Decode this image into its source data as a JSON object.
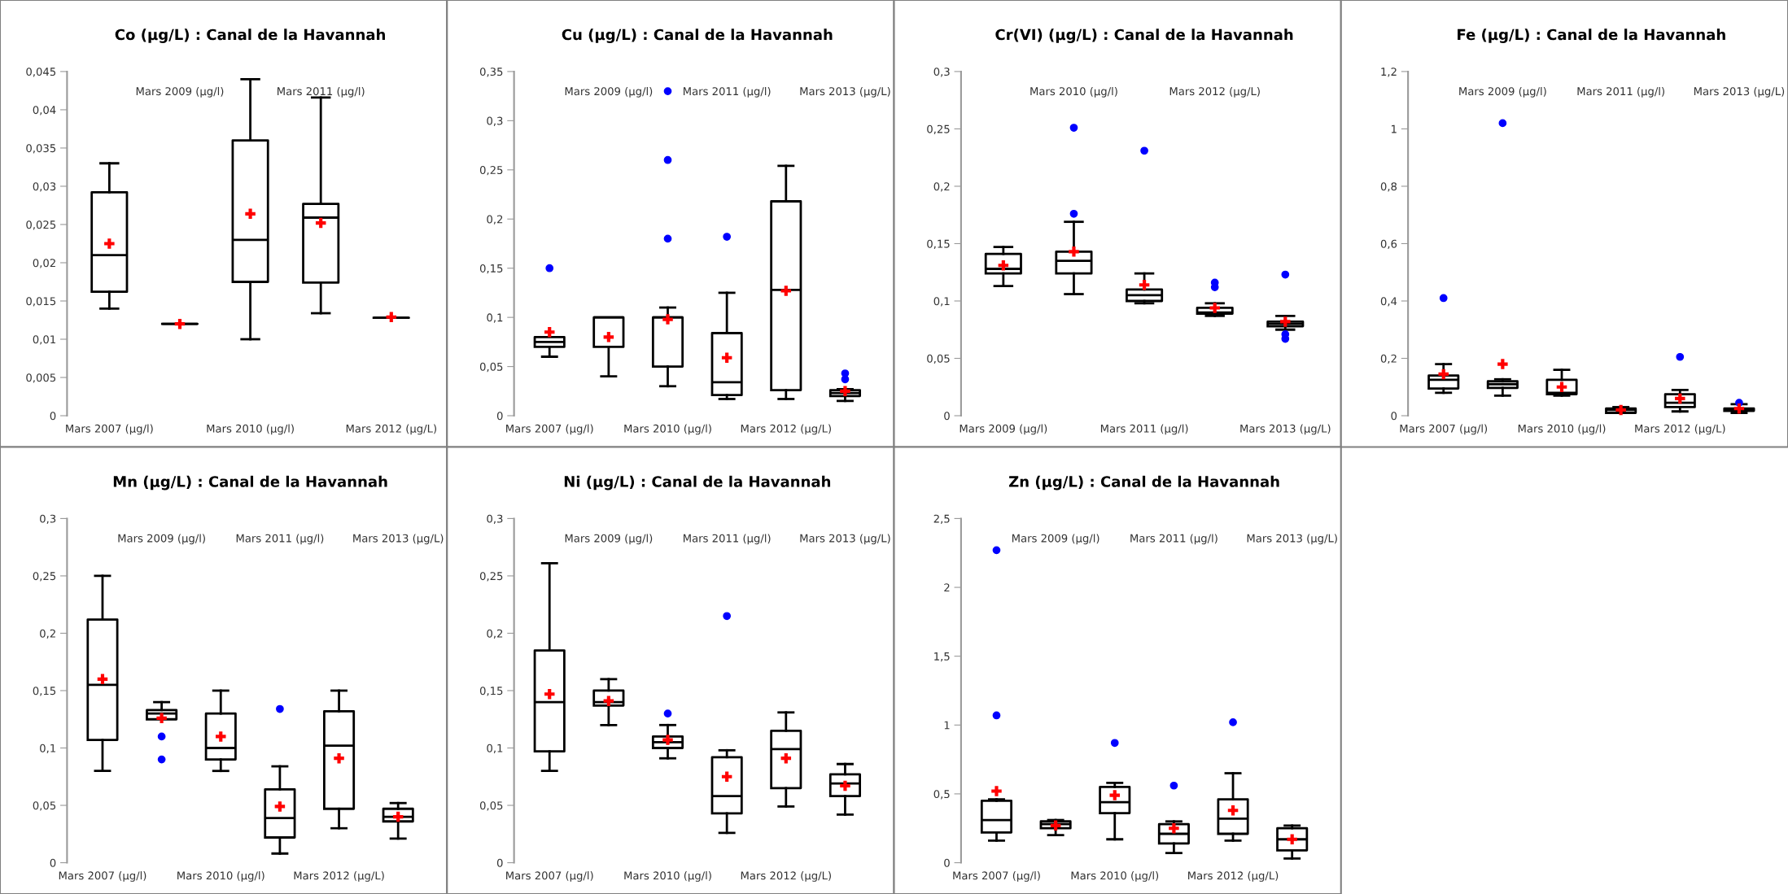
{
  "chart_data": [
    {
      "type": "box",
      "title": "Co (µg/L) : Canal de la Havannah",
      "categories": [
        "Mars 2007 (µg/l)",
        "Mars 2009 (µg/l)",
        "Mars 2010 (µg/l)",
        "Mars 2011 (µg/l)",
        "Mars 2012 (µg/L)"
      ],
      "boxes": [
        {
          "low": 0.014,
          "q1": 0.0162,
          "median": 0.021,
          "q3": 0.0292,
          "high": 0.033,
          "mean": 0.0225
        },
        {
          "low": 0.012,
          "q1": 0.012,
          "median": 0.012,
          "q3": 0.012,
          "high": 0.012,
          "mean": 0.012
        },
        {
          "low": 0.01,
          "q1": 0.0175,
          "median": 0.023,
          "q3": 0.036,
          "high": 0.044,
          "mean": 0.0264
        },
        {
          "low": 0.0134,
          "q1": 0.0174,
          "median": 0.0259,
          "q3": 0.0277,
          "high": 0.0416,
          "mean": 0.0252
        },
        {
          "low": 0.0128,
          "q1": 0.0128,
          "median": 0.0128,
          "q3": 0.0128,
          "high": 0.0128,
          "mean": 0.0129
        }
      ],
      "ylim": [
        0,
        0.045
      ],
      "yticks": [
        0,
        {
          "value": 0.005,
          "label": "0,005"
        },
        {
          "value": 0.01,
          "label": "0,01"
        },
        {
          "value": 0.015,
          "label": "0,015"
        },
        {
          "value": 0.02,
          "label": "0,02"
        },
        {
          "value": 0.025,
          "label": "0,025"
        },
        {
          "value": 0.03,
          "label": "0,03"
        },
        {
          "value": 0.035,
          "label": "0,035"
        },
        {
          "value": 0.04,
          "label": "0,04"
        },
        {
          "value": 0.045,
          "label": "0,045"
        }
      ]
    },
    {
      "type": "box",
      "title": "Cu (µg/L) : Canal de la Havannah",
      "categories": [
        "Mars 2007 (µg/l)",
        "Mars 2009 (µg/l)",
        "Mars 2010 (µg/l)",
        "Mars 2011 (µg/l)",
        "Mars 2012 (µg/L)",
        "Mars 2013 (µg/L)"
      ],
      "boxes": [
        {
          "low": 0.06,
          "q1": 0.07,
          "median": 0.075,
          "q3": 0.08,
          "high": 0.08,
          "mean": 0.085,
          "outliers": [
            0.15
          ]
        },
        {
          "low": 0.04,
          "q1": 0.07,
          "median": 0.1,
          "q3": 0.1,
          "high": 0.1,
          "mean": 0.08
        },
        {
          "low": 0.03,
          "q1": 0.05,
          "median": 0.1,
          "q3": 0.1,
          "high": 0.11,
          "mean": 0.098,
          "outliers": [
            0.18,
            0.26,
            0.33
          ]
        },
        {
          "low": 0.017,
          "q1": 0.021,
          "median": 0.034,
          "q3": 0.084,
          "high": 0.125,
          "mean": 0.059,
          "outliers": [
            0.182
          ]
        },
        {
          "low": 0.017,
          "q1": 0.026,
          "median": 0.128,
          "q3": 0.218,
          "high": 0.254,
          "mean": 0.127
        },
        {
          "low": 0.015,
          "q1": 0.02,
          "median": 0.023,
          "q3": 0.026,
          "high": 0.027,
          "mean": 0.025,
          "outliers": [
            0.037,
            0.043
          ]
        }
      ],
      "ylim": [
        0,
        0.35
      ],
      "yticks": [
        0,
        {
          "value": 0.05,
          "label": "0,05"
        },
        {
          "value": 0.1,
          "label": "0,1"
        },
        {
          "value": 0.15,
          "label": "0,15"
        },
        {
          "value": 0.2,
          "label": "0,2"
        },
        {
          "value": 0.25,
          "label": "0,25"
        },
        {
          "value": 0.3,
          "label": "0,3"
        },
        {
          "value": 0.35,
          "label": "0,35"
        }
      ]
    },
    {
      "type": "box",
      "title": "Cr(VI) (µg/L) : Canal de la Havannah",
      "categories": [
        "Mars 2009 (µg/l)",
        "Mars 2010 (µg/l)",
        "Mars 2011 (µg/l)",
        "Mars 2012 (µg/L)",
        "Mars 2013 (µg/L)"
      ],
      "boxes": [
        {
          "low": 0.113,
          "q1": 0.124,
          "median": 0.128,
          "q3": 0.141,
          "high": 0.147,
          "mean": 0.131
        },
        {
          "low": 0.106,
          "q1": 0.124,
          "median": 0.135,
          "q3": 0.143,
          "high": 0.169,
          "mean": 0.143,
          "outliers": [
            0.176,
            0.251
          ]
        },
        {
          "low": 0.098,
          "q1": 0.1,
          "median": 0.105,
          "q3": 0.11,
          "high": 0.124,
          "mean": 0.114,
          "outliers": [
            0.231
          ]
        },
        {
          "low": 0.087,
          "q1": 0.089,
          "median": 0.09,
          "q3": 0.094,
          "high": 0.098,
          "mean": 0.094,
          "outliers": [
            0.112,
            0.116
          ]
        },
        {
          "low": 0.075,
          "q1": 0.078,
          "median": 0.08,
          "q3": 0.082,
          "high": 0.087,
          "mean": 0.082,
          "outliers": [
            0.067,
            0.071,
            0.123
          ]
        }
      ],
      "ylim": [
        0,
        0.3
      ],
      "yticks": [
        0,
        {
          "value": 0.05,
          "label": "0,05"
        },
        {
          "value": 0.1,
          "label": "0,1"
        },
        {
          "value": 0.15,
          "label": "0,15"
        },
        {
          "value": 0.2,
          "label": "0,2"
        },
        {
          "value": 0.25,
          "label": "0,25"
        },
        {
          "value": 0.3,
          "label": "0,3"
        }
      ]
    },
    {
      "type": "box",
      "title": "Fe (µg/L) : Canal de la Havannah",
      "categories": [
        "Mars 2007 (µg/l)",
        "Mars 2009 (µg/l)",
        "Mars 2010 (µg/l)",
        "Mars 2011 (µg/l)",
        "Mars 2012 (µg/L)",
        "Mars 2013 (µg/L)"
      ],
      "boxes": [
        {
          "low": 0.08,
          "q1": 0.095,
          "median": 0.125,
          "q3": 0.14,
          "high": 0.18,
          "mean": 0.145,
          "outliers": [
            0.41
          ]
        },
        {
          "low": 0.07,
          "q1": 0.097,
          "median": 0.11,
          "q3": 0.12,
          "high": 0.127,
          "mean": 0.18,
          "outliers": [
            1.02
          ]
        },
        {
          "low": 0.07,
          "q1": 0.075,
          "median": 0.08,
          "q3": 0.125,
          "high": 0.16,
          "mean": 0.1
        },
        {
          "low": 0.01,
          "q1": 0.01,
          "median": 0.02,
          "q3": 0.025,
          "high": 0.03,
          "mean": 0.02
        },
        {
          "low": 0.015,
          "q1": 0.03,
          "median": 0.045,
          "q3": 0.075,
          "high": 0.09,
          "mean": 0.06,
          "outliers": [
            0.205
          ]
        },
        {
          "low": 0.01,
          "q1": 0.017,
          "median": 0.02,
          "q3": 0.025,
          "high": 0.04,
          "mean": 0.025,
          "outliers": [
            0.045
          ]
        }
      ],
      "ylim": [
        0,
        1.2
      ],
      "yticks": [
        0,
        {
          "value": 0.2,
          "label": "0,2"
        },
        {
          "value": 0.4,
          "label": "0,4"
        },
        {
          "value": 0.6,
          "label": "0,6"
        },
        {
          "value": 0.8,
          "label": "0,8"
        },
        1,
        {
          "value": 1.2,
          "label": "1,2"
        }
      ]
    },
    {
      "type": "box",
      "title": "Mn (µg/L) : Canal de la Havannah",
      "categories": [
        "Mars 2007 (µg/l)",
        "Mars 2009 (µg/l)",
        "Mars 2010 (µg/l)",
        "Mars 2011 (µg/l)",
        "Mars 2012 (µg/L)",
        "Mars 2013 (µg/L)"
      ],
      "boxes": [
        {
          "low": 0.08,
          "q1": 0.107,
          "median": 0.155,
          "q3": 0.212,
          "high": 0.25,
          "mean": 0.16
        },
        {
          "low": 0.125,
          "q1": 0.125,
          "median": 0.13,
          "q3": 0.133,
          "high": 0.14,
          "mean": 0.126,
          "outliers": [
            0.11,
            0.09
          ]
        },
        {
          "low": 0.08,
          "q1": 0.09,
          "median": 0.1,
          "q3": 0.13,
          "high": 0.15,
          "mean": 0.11
        },
        {
          "low": 0.008,
          "q1": 0.022,
          "median": 0.039,
          "q3": 0.064,
          "high": 0.084,
          "mean": 0.049,
          "outliers": [
            0.134
          ]
        },
        {
          "low": 0.03,
          "q1": 0.047,
          "median": 0.102,
          "q3": 0.132,
          "high": 0.15,
          "mean": 0.091
        },
        {
          "low": 0.021,
          "q1": 0.036,
          "median": 0.04,
          "q3": 0.047,
          "high": 0.052,
          "mean": 0.04
        }
      ],
      "ylim": [
        0,
        0.3
      ],
      "yticks": [
        0,
        {
          "value": 0.05,
          "label": "0,05"
        },
        {
          "value": 0.1,
          "label": "0,1"
        },
        {
          "value": 0.15,
          "label": "0,15"
        },
        {
          "value": 0.2,
          "label": "0,2"
        },
        {
          "value": 0.25,
          "label": "0,25"
        },
        {
          "value": 0.3,
          "label": "0,3"
        }
      ]
    },
    {
      "type": "box",
      "title": "Ni (µg/L) : Canal de la Havannah",
      "categories": [
        "Mars 2007 (µg/l)",
        "Mars 2009 (µg/l)",
        "Mars 2010 (µg/l)",
        "Mars 2011 (µg/l)",
        "Mars 2012 (µg/L)",
        "Mars 2013 (µg/L)"
      ],
      "boxes": [
        {
          "low": 0.08,
          "q1": 0.097,
          "median": 0.14,
          "q3": 0.185,
          "high": 0.261,
          "mean": 0.147
        },
        {
          "low": 0.12,
          "q1": 0.137,
          "median": 0.14,
          "q3": 0.15,
          "high": 0.16,
          "mean": 0.141
        },
        {
          "low": 0.091,
          "q1": 0.1,
          "median": 0.105,
          "q3": 0.11,
          "high": 0.12,
          "mean": 0.107,
          "outliers": [
            0.13
          ]
        },
        {
          "low": 0.026,
          "q1": 0.043,
          "median": 0.058,
          "q3": 0.092,
          "high": 0.098,
          "mean": 0.075,
          "outliers": [
            0.215
          ]
        },
        {
          "low": 0.049,
          "q1": 0.065,
          "median": 0.099,
          "q3": 0.115,
          "high": 0.131,
          "mean": 0.091
        },
        {
          "low": 0.042,
          "q1": 0.058,
          "median": 0.069,
          "q3": 0.077,
          "high": 0.086,
          "mean": 0.067
        }
      ],
      "ylim": [
        0,
        0.3
      ],
      "yticks": [
        0,
        {
          "value": 0.05,
          "label": "0,05"
        },
        {
          "value": 0.1,
          "label": "0,1"
        },
        {
          "value": 0.15,
          "label": "0,15"
        },
        {
          "value": 0.2,
          "label": "0,2"
        },
        {
          "value": 0.25,
          "label": "0,25"
        },
        {
          "value": 0.3,
          "label": "0,3"
        }
      ]
    },
    {
      "type": "box",
      "title": "Zn (µg/L) : Canal de la Havannah",
      "categories": [
        "Mars 2007 (µg/l)",
        "Mars 2009 (µg/l)",
        "Mars 2010 (µg/l)",
        "Mars 2011 (µg/l)",
        "Mars 2012 (µg/L)",
        "Mars 2013 (µg/L)"
      ],
      "boxes": [
        {
          "low": 0.16,
          "q1": 0.22,
          "median": 0.31,
          "q3": 0.45,
          "high": 0.46,
          "mean": 0.52,
          "outliers": [
            1.07,
            2.27
          ]
        },
        {
          "low": 0.2,
          "q1": 0.25,
          "median": 0.28,
          "q3": 0.3,
          "high": 0.31,
          "mean": 0.27
        },
        {
          "low": 0.17,
          "q1": 0.36,
          "median": 0.44,
          "q3": 0.55,
          "high": 0.58,
          "mean": 0.49,
          "outliers": [
            0.87
          ]
        },
        {
          "low": 0.07,
          "q1": 0.14,
          "median": 0.21,
          "q3": 0.28,
          "high": 0.3,
          "mean": 0.25,
          "outliers": [
            0.56
          ]
        },
        {
          "low": 0.16,
          "q1": 0.21,
          "median": 0.32,
          "q3": 0.46,
          "high": 0.65,
          "mean": 0.38,
          "outliers": [
            1.02
          ]
        },
        {
          "low": 0.03,
          "q1": 0.09,
          "median": 0.17,
          "q3": 0.25,
          "high": 0.27,
          "mean": 0.17
        }
      ],
      "ylim": [
        0,
        2.5
      ],
      "yticks": [
        0,
        {
          "value": 0.5,
          "label": "0,5"
        },
        1,
        {
          "value": 1.5,
          "label": "1,5"
        },
        2,
        {
          "value": 2.5,
          "label": "2,5"
        }
      ]
    }
  ]
}
